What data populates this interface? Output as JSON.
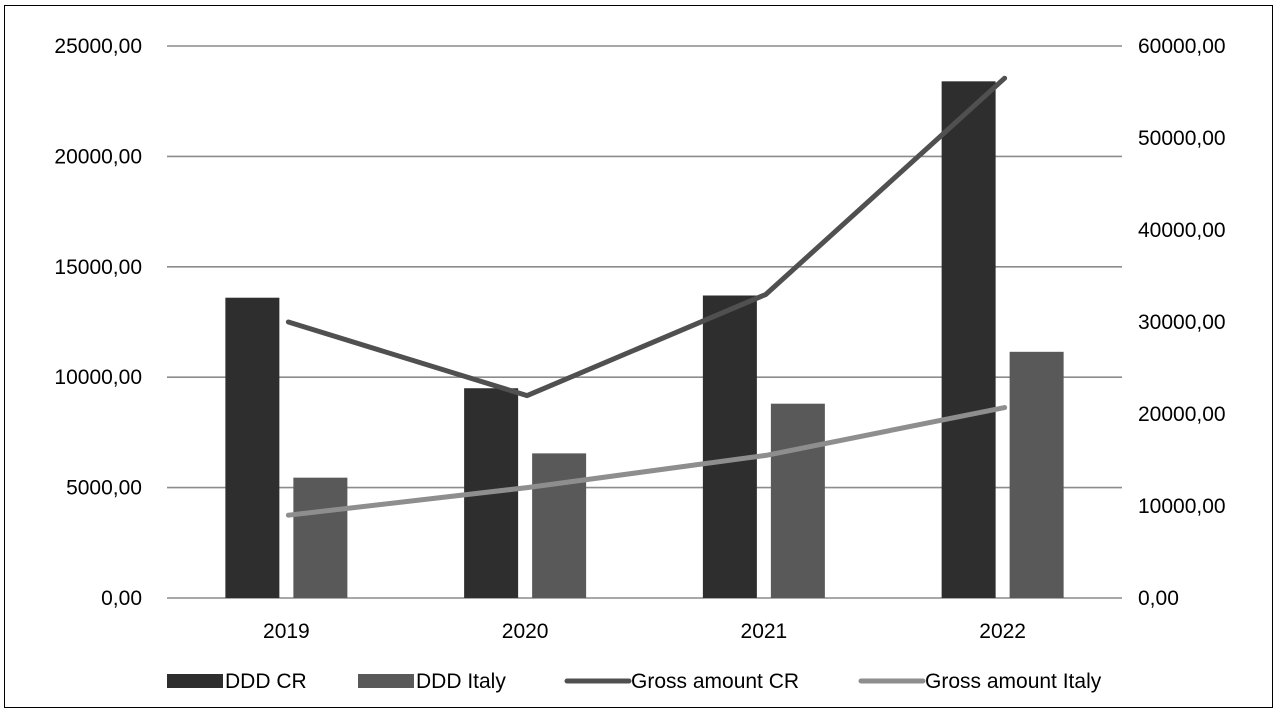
{
  "chart_data": {
    "type": "bar",
    "categories": [
      "2019",
      "2020",
      "2021",
      "2022"
    ],
    "series": [
      {
        "name": "DDD CR",
        "kind": "bar",
        "axis": "left",
        "color": "#2e2e2e",
        "values": [
          13600,
          9500,
          13700,
          23400
        ]
      },
      {
        "name": "DDD Italy",
        "kind": "bar",
        "axis": "left",
        "color": "#595959",
        "values": [
          5450,
          6550,
          8800,
          11150
        ]
      },
      {
        "name": "Gross amount CR",
        "kind": "line",
        "axis": "right",
        "color": "#505050",
        "values": [
          30000,
          22000,
          33000,
          56500
        ]
      },
      {
        "name": "Gross amount Italy",
        "kind": "line",
        "axis": "right",
        "color": "#8e8e8e",
        "values": [
          9000,
          12000,
          15500,
          20700
        ]
      }
    ],
    "ylim_left": [
      0,
      25000
    ],
    "yticks_left": [
      "0,00",
      "5000,00",
      "10000,00",
      "15000,00",
      "20000,00",
      "25000,00"
    ],
    "ylim_right": [
      0,
      60000
    ],
    "yticks_right": [
      "0,00",
      "10000,00",
      "20000,00",
      "30000,00",
      "40000,00",
      "50000,00",
      "60000,00"
    ],
    "grid": true,
    "legend_position": "bottom"
  }
}
